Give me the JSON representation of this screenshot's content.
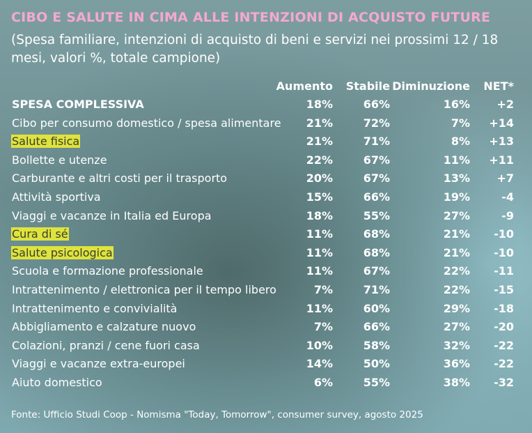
{
  "chart_data": {
    "type": "table",
    "title": "CIBO E SALUTE IN CIMA ALLE INTENZIONI DI ACQUISTO FUTURE",
    "subtitle": "(Spesa familiare,  intenzioni di acquisto di beni e servizi nei prossimi 12 / 18 mesi, valori %, totale campione)",
    "columns": [
      "Aumento",
      "Stabile",
      "Diminuzione",
      "NET*"
    ],
    "rows": [
      {
        "label": "SPESA COMPLESSIVA",
        "values": [
          "18%",
          "66%",
          "16%",
          "+2"
        ],
        "bold": true
      },
      {
        "label": "Cibo per consumo domestico / spesa alimentare",
        "values": [
          "21%",
          "72%",
          "7%",
          "+14"
        ]
      },
      {
        "label": "Salute fisica",
        "values": [
          "21%",
          "71%",
          "8%",
          "+13"
        ],
        "highlight": true
      },
      {
        "label": "Bollette e utenze",
        "values": [
          "22%",
          "67%",
          "11%",
          "+11"
        ]
      },
      {
        "label": "Carburante e altri costi per il trasporto",
        "values": [
          "20%",
          "67%",
          "13%",
          "+7"
        ]
      },
      {
        "label": "Attività sportiva",
        "values": [
          "15%",
          "66%",
          "19%",
          "-4"
        ]
      },
      {
        "label": "Viaggi e vacanze in Italia ed Europa",
        "values": [
          "18%",
          "55%",
          "27%",
          "-9"
        ]
      },
      {
        "label": "Cura di sé",
        "values": [
          "11%",
          "68%",
          "21%",
          "-10"
        ],
        "highlight": true
      },
      {
        "label": "Salute psicologica",
        "values": [
          "11%",
          "68%",
          "21%",
          "-10"
        ],
        "highlight": true
      },
      {
        "label": "Scuola e formazione professionale",
        "values": [
          "11%",
          "67%",
          "22%",
          "-11"
        ]
      },
      {
        "label": "Intrattenimento / elettronica per il tempo libero",
        "values": [
          "7%",
          "71%",
          "22%",
          "-15"
        ]
      },
      {
        "label": "Intrattenimento e convivialità",
        "values": [
          "11%",
          "60%",
          "29%",
          "-18"
        ]
      },
      {
        "label": "Abbigliamento e calzature nuovo",
        "values": [
          "7%",
          "66%",
          "27%",
          "-20"
        ]
      },
      {
        "label": "Colazioni, pranzi / cene fuori casa",
        "values": [
          "10%",
          "58%",
          "32%",
          "-22"
        ]
      },
      {
        "label": "Viaggi e vacanze extra-europei",
        "values": [
          "14%",
          "50%",
          "36%",
          "-22"
        ]
      },
      {
        "label": "Aiuto domestico",
        "values": [
          "6%",
          "55%",
          "38%",
          "-32"
        ]
      }
    ],
    "source": "Fonte: Ufficio Studi Coop - Nomisma \"Today, Tomorrow\", consumer survey, agosto 2025"
  },
  "colors": {
    "title": "#f4a9cf",
    "highlight": "#dfe33d",
    "text": "#ffffff"
  }
}
